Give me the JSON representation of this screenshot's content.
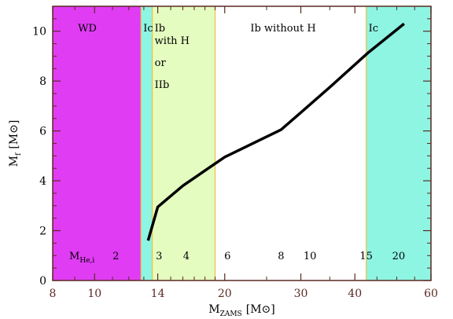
{
  "chart_data": {
    "type": "line",
    "x_scale": "log",
    "xlim": [
      8,
      60
    ],
    "ylim": [
      0,
      11
    ],
    "xlabel_main": "M",
    "xlabel_sub": "ZAMS",
    "xlabel_unit": "[M⊙]",
    "ylabel_main": "M",
    "ylabel_sub": "f",
    "ylabel_unit": "[M⊙]",
    "x_ticks": [
      8,
      10,
      14,
      20,
      30,
      40,
      60
    ],
    "x_tick_labels": [
      "8",
      "10",
      "14",
      "20",
      "30",
      "40",
      "60"
    ],
    "y_ticks": [
      0,
      2,
      4,
      6,
      8,
      10
    ],
    "y_tick_labels": [
      "0",
      "2",
      "4",
      "6",
      "8",
      "10"
    ],
    "grid": false,
    "series": [
      {
        "x": [
          13.3,
          14.0,
          16.0,
          20.0,
          27.0,
          35.0,
          43.0,
          52.0
        ],
        "y": [
          1.6,
          2.95,
          3.8,
          4.95,
          6.05,
          7.75,
          9.15,
          10.3
        ]
      }
    ],
    "regions": [
      {
        "label": "WD",
        "x0": 8,
        "x1": 12.8,
        "color": "#e03cf4"
      },
      {
        "label": "Ic",
        "x0": 12.8,
        "x1": 13.6,
        "color": "#8ef5e2"
      },
      {
        "label": "Ib with H or IIb",
        "lines": [
          "Ib",
          "with H",
          "or",
          "IIb"
        ],
        "x0": 13.6,
        "x1": 19.0,
        "color": "#e4fcc0"
      },
      {
        "label": "Ib without H",
        "x0": 19.0,
        "x1": 42.5,
        "color": "#ffffff"
      },
      {
        "label": "Ic",
        "x0": 42.5,
        "x1": 60,
        "color": "#8ef5e2"
      }
    ],
    "region_edge_color": "#f0c040",
    "helium_core_mass_label_main": "M",
    "helium_core_mass_label_sub": "He,i",
    "helium_core_mass_labels": [
      {
        "text": "2",
        "x": 11.2
      },
      {
        "text": "3",
        "x": 14.1
      },
      {
        "text": "4",
        "x": 16.3
      },
      {
        "text": "6",
        "x": 20.3
      },
      {
        "text": "8",
        "x": 27.0
      },
      {
        "text": "10",
        "x": 31.5
      },
      {
        "text": "15",
        "x": 42.5
      },
      {
        "text": "20",
        "x": 50.5
      }
    ],
    "line_color": "#000000",
    "axis_color": "#5a2a22"
  }
}
